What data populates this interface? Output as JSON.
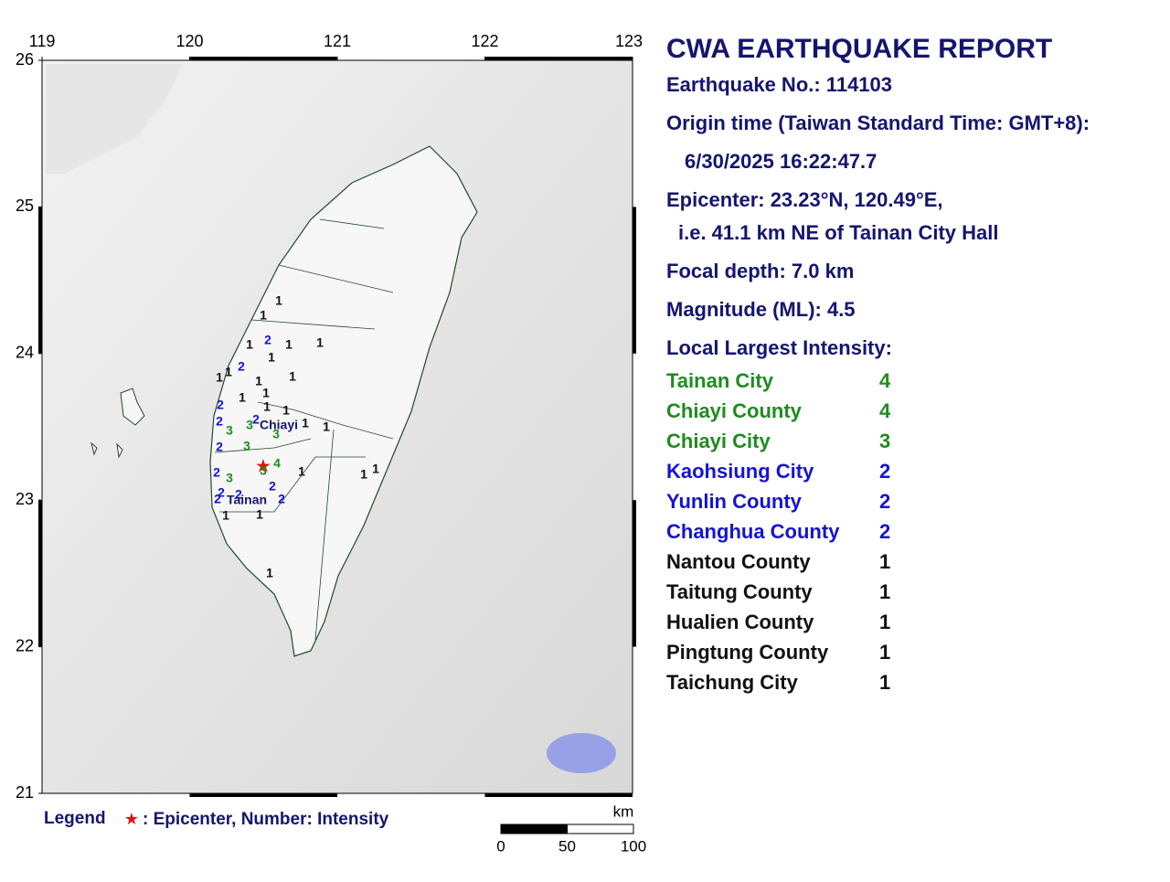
{
  "map": {
    "lon_ticks": [
      119,
      120,
      121,
      122,
      123
    ],
    "lat_ticks": [
      21,
      22,
      23,
      24,
      25,
      26
    ],
    "lon_range": [
      119,
      123
    ],
    "lat_range": [
      21,
      26
    ],
    "place_names": [
      "Chiayi",
      "Tainan"
    ],
    "intensity_labels": [
      "1",
      "1",
      "2",
      "1",
      "1",
      "1",
      "1",
      "2",
      "1",
      "1",
      "1",
      "1",
      "1",
      "1",
      "2",
      "1",
      "1",
      "2",
      "2",
      "3",
      "3",
      "1",
      "1",
      "3",
      "2",
      "3",
      "4",
      "3",
      "1",
      "2",
      "3",
      "1",
      "1",
      "2",
      "2",
      "2",
      "2",
      "2",
      "1",
      "1",
      "1"
    ],
    "intensity_colors": {
      "1": "#111111",
      "2": "#1414d2",
      "3": "#1e8c1e",
      "4": "#1e8c1e"
    },
    "legend": {
      "label": "Legend",
      "symbol": "★",
      "text": ": Epicenter, Number: Intensity"
    },
    "scale_bar": {
      "unit": "km",
      "ticks": [
        0,
        50,
        100
      ]
    }
  },
  "report": {
    "title": "CWA EARTHQUAKE REPORT",
    "number": "Earthquake No.: 114103",
    "origin_label": "Origin time (Taiwan Standard Time: GMT+8):",
    "origin_time": "6/30/2025 16:22:47.7",
    "epicenter": "Epicenter: 23.23°N, 120.49°E,",
    "epicenter_ref": "i.e. 41.1 km NE of Tainan City Hall",
    "depth": "Focal depth: 7.0 km",
    "magnitude": "Magnitude (ML): 4.5",
    "intensity_heading": "Local Largest Intensity:",
    "intensities": [
      {
        "name": "Tainan City",
        "value": 4
      },
      {
        "name": "Chiayi County",
        "value": 4
      },
      {
        "name": "Chiayi City",
        "value": 3
      },
      {
        "name": "Kaohsiung City",
        "value": 2
      },
      {
        "name": "Yunlin County",
        "value": 2
      },
      {
        "name": "Changhua County",
        "value": 2
      },
      {
        "name": "Nantou County",
        "value": 1
      },
      {
        "name": "Taitung County",
        "value": 1
      },
      {
        "name": "Hualien County",
        "value": 1
      },
      {
        "name": "Pingtung County",
        "value": 1
      },
      {
        "name": "Taichung City",
        "value": 1
      }
    ]
  }
}
